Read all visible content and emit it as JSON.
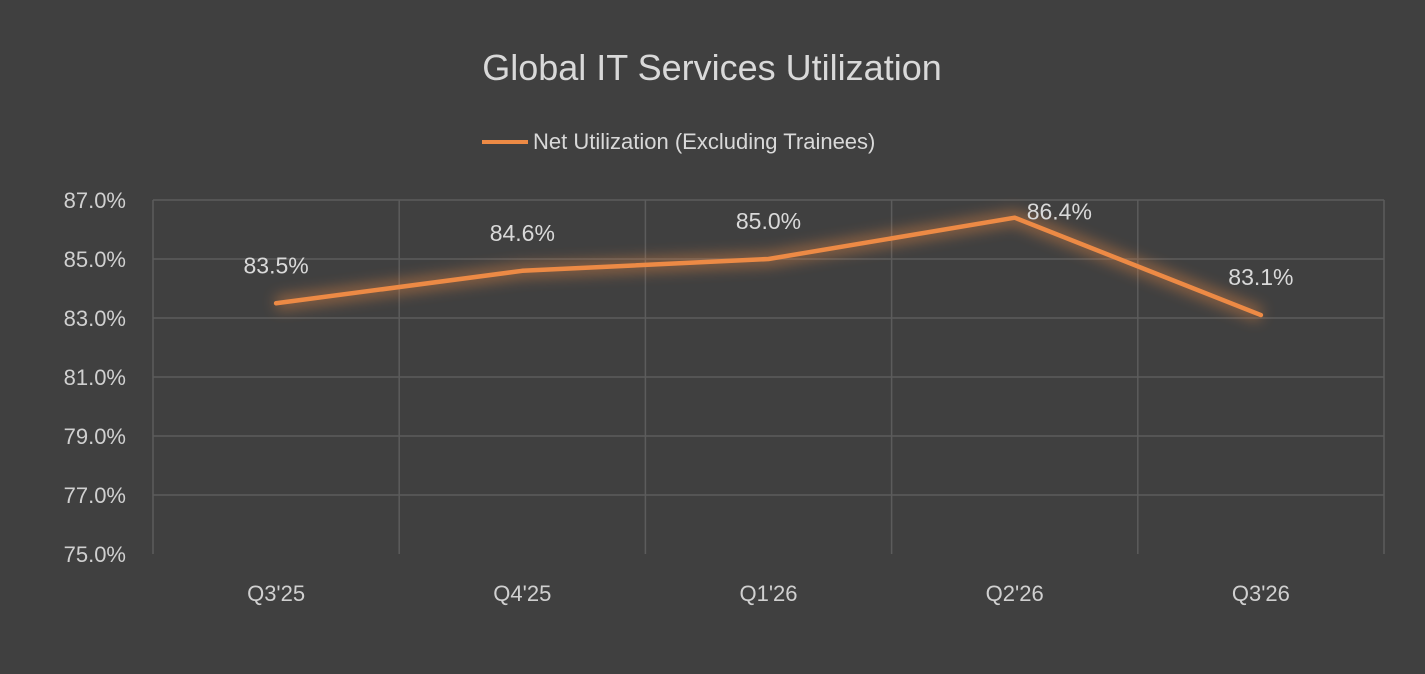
{
  "chart_data": {
    "type": "line",
    "title": "Global IT Services Utilization",
    "categories": [
      "Q3'25",
      "Q4'25",
      "Q1'26",
      "Q2'26",
      "Q3'26"
    ],
    "series": [
      {
        "name": "Net Utilization (Excluding Trainees)",
        "values": [
          83.5,
          84.6,
          85.0,
          86.4,
          83.1
        ],
        "labels": [
          "83.5%",
          "84.6%",
          "85.0%",
          "86.4%",
          "83.1%"
        ],
        "color": "#ED8A45"
      }
    ],
    "ylim": [
      75.0,
      87.0
    ],
    "yticks": [
      "75.0%",
      "77.0%",
      "79.0%",
      "81.0%",
      "83.0%",
      "85.0%",
      "87.0%"
    ],
    "ytick_values": [
      75,
      77,
      79,
      81,
      83,
      85,
      87
    ],
    "grid": true,
    "legend_position": "top",
    "background": "#404040"
  }
}
